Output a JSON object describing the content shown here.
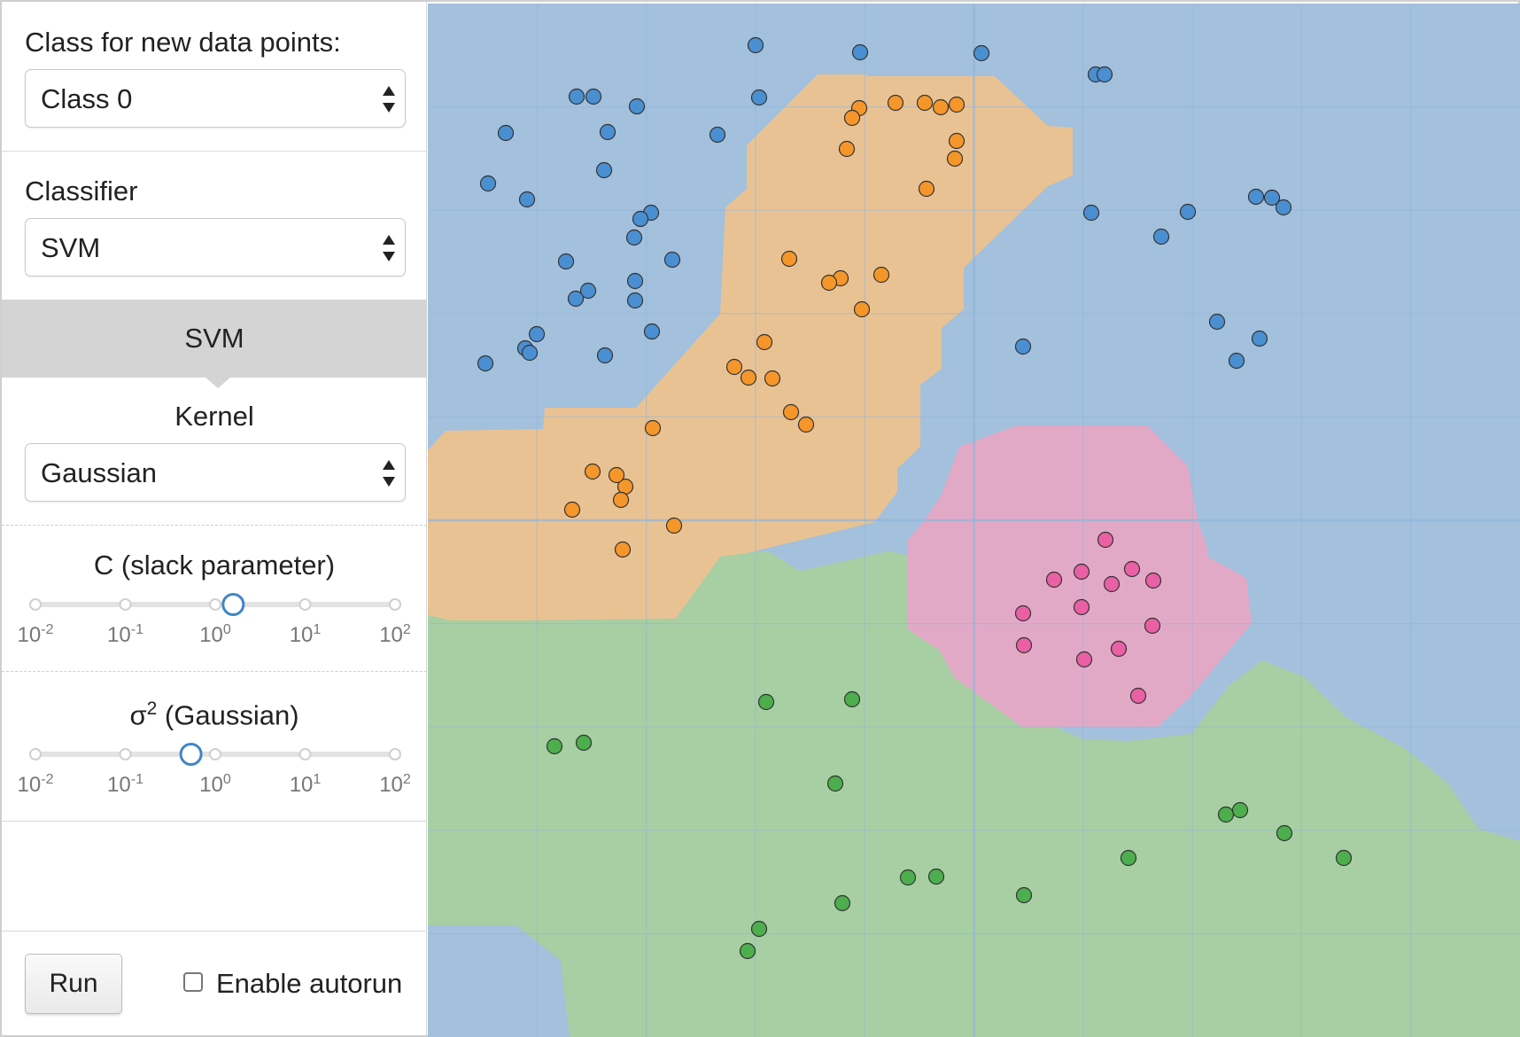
{
  "sidebar": {
    "class_section": {
      "label": "Class for new data points:",
      "selected": "Class 0"
    },
    "classifier_section": {
      "label": "Classifier",
      "selected": "SVM"
    },
    "panel_title": "SVM",
    "kernel_section": {
      "label": "Kernel",
      "selected": "Gaussian"
    },
    "c_slider": {
      "label": "C (slack parameter)",
      "ticks": [
        {
          "base": "10",
          "exp": "-2"
        },
        {
          "base": "10",
          "exp": "-1"
        },
        {
          "base": "10",
          "exp": "0"
        },
        {
          "base": "10",
          "exp": "1"
        },
        {
          "base": "10",
          "exp": "2"
        }
      ],
      "log_value": 0.2
    },
    "sigma_slider": {
      "label_symbol": "σ",
      "label_exp": "2",
      "label_text": " (Gaussian)",
      "ticks": [
        {
          "base": "10",
          "exp": "-2"
        },
        {
          "base": "10",
          "exp": "-1"
        },
        {
          "base": "10",
          "exp": "0"
        },
        {
          "base": "10",
          "exp": "1"
        },
        {
          "base": "10",
          "exp": "2"
        }
      ],
      "log_value": -0.27
    },
    "run_label": "Run",
    "autorun_label": "Enable autorun",
    "autorun_checked": false
  },
  "colors": {
    "class0_region": "#a3c0dc",
    "class0_point": "#4a8fd1",
    "class1_region": "#e9c293",
    "class1_point": "#f5962a",
    "class2_region": "#a7cfa3",
    "class2_point": "#4cae4c",
    "class3_region": "#e2a9c6",
    "class3_point": "#e960a4",
    "grid": "#8fb7db"
  },
  "plot": {
    "points": {
      "class0": [
        [
          370,
          47
        ],
        [
          488,
          55
        ],
        [
          625,
          56
        ],
        [
          754,
          80
        ],
        [
          764,
          80
        ],
        [
          168,
          105
        ],
        [
          187,
          105
        ],
        [
          374,
          106
        ],
        [
          236,
          116
        ],
        [
          88,
          146
        ],
        [
          203,
          145
        ],
        [
          327,
          148
        ],
        [
          199,
          188
        ],
        [
          68,
          203
        ],
        [
          112,
          221
        ],
        [
          252,
          236
        ],
        [
          749,
          236
        ],
        [
          858,
          235
        ],
        [
          240,
          243
        ],
        [
          233,
          264
        ],
        [
          828,
          263
        ],
        [
          935,
          218
        ],
        [
          953,
          219
        ],
        [
          966,
          230
        ],
        [
          276,
          289
        ],
        [
          156,
          291
        ],
        [
          234,
          313
        ],
        [
          181,
          324
        ],
        [
          167,
          333
        ],
        [
          234,
          335
        ],
        [
          253,
          370
        ],
        [
          891,
          359
        ],
        [
          672,
          387
        ],
        [
          913,
          403
        ],
        [
          939,
          378
        ],
        [
          123,
          373
        ],
        [
          110,
          389
        ],
        [
          115,
          394
        ],
        [
          200,
          397
        ],
        [
          65,
          406
        ]
      ],
      "class1": [
        [
          528,
          112
        ],
        [
          561,
          112
        ],
        [
          579,
          117
        ],
        [
          487,
          118
        ],
        [
          597,
          114
        ],
        [
          479,
          129
        ],
        [
          473,
          164
        ],
        [
          597,
          155
        ],
        [
          595,
          175
        ],
        [
          563,
          209
        ],
        [
          408,
          288
        ],
        [
          466,
          310
        ],
        [
          453,
          315
        ],
        [
          512,
          306
        ],
        [
          490,
          345
        ],
        [
          380,
          382
        ],
        [
          346,
          410
        ],
        [
          362,
          422
        ],
        [
          389,
          423
        ],
        [
          410,
          461
        ],
        [
          254,
          479
        ],
        [
          427,
          475
        ],
        [
          223,
          545
        ],
        [
          218,
          560
        ],
        [
          213,
          532
        ],
        [
          163,
          571
        ],
        [
          186,
          528
        ],
        [
          278,
          589
        ],
        [
          220,
          616
        ]
      ],
      "class2": [
        [
          382,
          788
        ],
        [
          479,
          785
        ],
        [
          143,
          838
        ],
        [
          176,
          834
        ],
        [
          460,
          880
        ],
        [
          901,
          915
        ],
        [
          917,
          910
        ],
        [
          967,
          936
        ],
        [
          791,
          964
        ],
        [
          1034,
          964
        ],
        [
          542,
          986
        ],
        [
          574,
          985
        ],
        [
          468,
          1015
        ],
        [
          673,
          1006
        ],
        [
          374,
          1044
        ],
        [
          361,
          1069
        ]
      ],
      "class3": [
        [
          765,
          605
        ],
        [
          738,
          641
        ],
        [
          707,
          650
        ],
        [
          795,
          638
        ],
        [
          819,
          651
        ],
        [
          772,
          655
        ],
        [
          672,
          688
        ],
        [
          738,
          681
        ],
        [
          818,
          702
        ],
        [
          673,
          724
        ],
        [
          741,
          740
        ],
        [
          780,
          728
        ],
        [
          802,
          781
        ]
      ]
    }
  }
}
